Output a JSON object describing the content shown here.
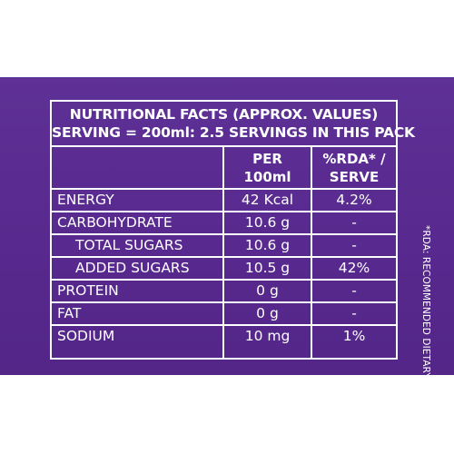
{
  "label": {
    "title_line1": "NUTRITIONAL FACTS  (APPROX. VALUES)",
    "title_line2": "SERVING = 200ml: 2.5 SERVINGS IN THIS PACK",
    "col_per_line1": "PER",
    "col_per_line2": "100ml",
    "col_rda_line1": "%RDA* /",
    "col_rda_line2": "SERVE",
    "footnote": "*RDA: RECOMMENDED DIETARY ALLOWANCE"
  },
  "rows": [
    {
      "name": "ENERGY",
      "per": "42 Kcal",
      "rda": "4.2%"
    },
    {
      "name": "CARBOHYDRATE",
      "per": "10.6 g",
      "rda": "-"
    },
    {
      "name": "TOTAL SUGARS",
      "per": "10.6 g",
      "rda": "-"
    },
    {
      "name": "ADDED SUGARS",
      "per": "10.5 g",
      "rda": "42%"
    },
    {
      "name": "PROTEIN",
      "per": "0 g",
      "rda": "-"
    },
    {
      "name": "FAT",
      "per": "0 g",
      "rda": "-"
    },
    {
      "name": "SODIUM",
      "per": "10 mg",
      "rda": "1%"
    }
  ],
  "colors": {
    "background_panel": "#5a2d91",
    "text": "#ffffff",
    "page": "#ffffff"
  }
}
